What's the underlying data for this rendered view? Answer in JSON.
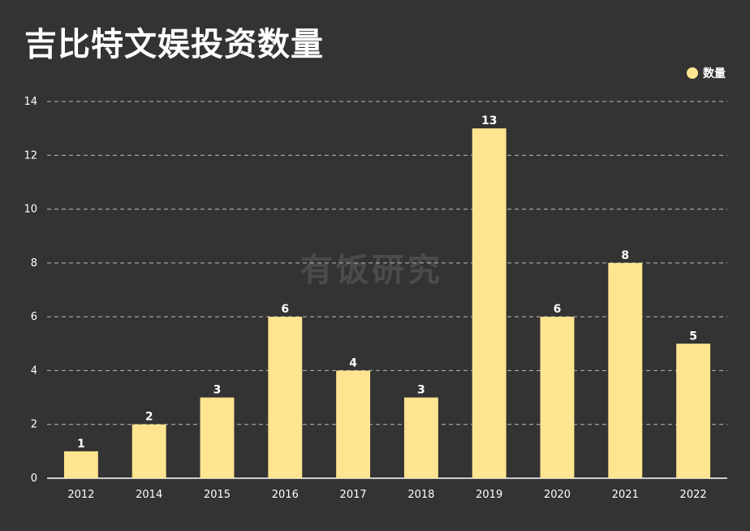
{
  "title": "吉比特文娱投资数量",
  "watermark": "有饭研究",
  "colors": {
    "background": "#333333",
    "bar": "#ffe58f",
    "text": "#ffffff",
    "grid": "#bbbbbb"
  },
  "chart_data": {
    "type": "bar",
    "title": "吉比特文娱投资数量",
    "categories": [
      "2012",
      "2014",
      "2015",
      "2016",
      "2017",
      "2018",
      "2019",
      "2020",
      "2021",
      "2022"
    ],
    "series": [
      {
        "name": "数量",
        "values": [
          1,
          2,
          3,
          6,
          4,
          3,
          13,
          6,
          8,
          5
        ]
      }
    ],
    "xlabel": "",
    "ylabel": "",
    "ylim": [
      0,
      14
    ],
    "yticks": [
      0,
      2,
      4,
      6,
      8,
      10,
      12,
      14
    ],
    "grid": true,
    "legend_position": "top-right"
  }
}
